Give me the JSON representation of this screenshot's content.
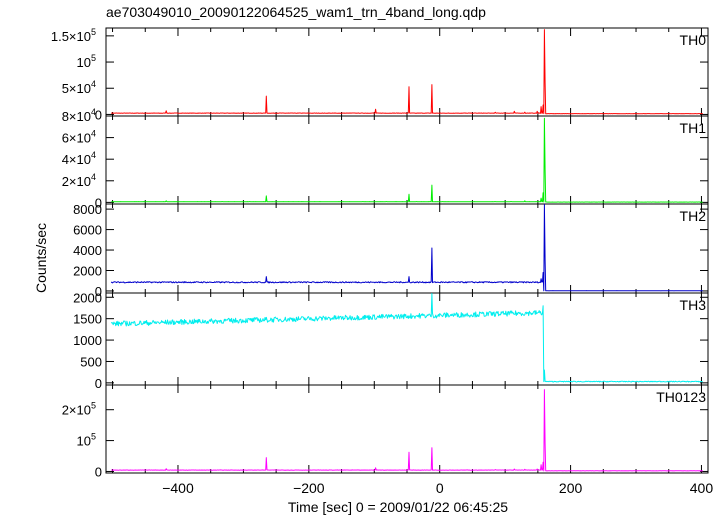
{
  "chart_data": {
    "type": "line",
    "title": "ae703049010_20090122064525_wam1_trn_4band_long.qdp",
    "xlabel": "Time [sec] 0 = 2009/01/22 06:45:25",
    "ylabel": "Counts/sec",
    "xlim": [
      -510,
      410
    ],
    "x_ticks": [
      -400,
      -200,
      0,
      200,
      400
    ],
    "x_tick_labels": [
      "−400",
      "−200",
      "0",
      "200",
      "400"
    ],
    "panels": [
      {
        "name": "TH0",
        "color": "#ff0000",
        "ylim": [
          -3000,
          165000
        ],
        "y_ticks": [
          {
            "value": 0,
            "mant": "0",
            "exp": ""
          },
          {
            "value": 50000,
            "mant": "5×10",
            "exp": "4"
          },
          {
            "value": 100000,
            "mant": "10",
            "exp": "5"
          },
          {
            "value": 150000,
            "mant": "1.5×10",
            "exp": "5"
          }
        ],
        "baseline": 2500,
        "noise": 300,
        "pre_end": 158,
        "post_level": 1500,
        "post_noise": 150,
        "spikes": [
          [
            -418,
            7000
          ],
          [
            -265,
            35000
          ],
          [
            -98,
            10000
          ],
          [
            -47,
            53000
          ],
          [
            -12,
            57000
          ],
          [
            85,
            4000
          ],
          [
            114,
            6000
          ],
          [
            130,
            4500
          ],
          [
            149,
            6000
          ],
          [
            155,
            15000
          ],
          [
            158,
            18000
          ],
          [
            160,
            162000
          ],
          [
            161,
            60000
          ]
        ]
      },
      {
        "name": "TH1",
        "color": "#00ee00",
        "ylim": [
          -1500,
          80000
        ],
        "y_ticks": [
          {
            "value": 0,
            "mant": "0",
            "exp": ""
          },
          {
            "value": 20000,
            "mant": "2×10",
            "exp": "4"
          },
          {
            "value": 40000,
            "mant": "4×10",
            "exp": "4"
          },
          {
            "value": 60000,
            "mant": "6×10",
            "exp": "4"
          },
          {
            "value": 80000,
            "mant": "8×10",
            "exp": "4"
          }
        ],
        "baseline": 600,
        "noise": 100,
        "pre_end": 158,
        "post_level": 300,
        "post_noise": 60,
        "spikes": [
          [
            -418,
            1500
          ],
          [
            -265,
            6000
          ],
          [
            -47,
            7500
          ],
          [
            -12,
            16000
          ],
          [
            130,
            1500
          ],
          [
            155,
            4000
          ],
          [
            158,
            9000
          ],
          [
            160,
            78000
          ],
          [
            161,
            30000
          ]
        ]
      },
      {
        "name": "TH2",
        "color": "#0000cc",
        "ylim": [
          -200,
          8500
        ],
        "y_ticks": [
          {
            "value": 0,
            "mant": "0",
            "exp": ""
          },
          {
            "value": 2000,
            "mant": "2000",
            "exp": ""
          },
          {
            "value": 4000,
            "mant": "4000",
            "exp": ""
          },
          {
            "value": 6000,
            "mant": "6000",
            "exp": ""
          },
          {
            "value": 8000,
            "mant": "8000",
            "exp": ""
          }
        ],
        "baseline": 850,
        "noise": 60,
        "pre_end": 158,
        "post_level": 20,
        "post_noise": 10,
        "spikes": [
          [
            -265,
            1400
          ],
          [
            -47,
            1400
          ],
          [
            -12,
            4200
          ],
          [
            155,
            1200
          ],
          [
            158,
            1800
          ],
          [
            160,
            8500
          ],
          [
            161,
            3000
          ]
        ]
      },
      {
        "name": "TH3",
        "color": "#00eeee",
        "ylim": [
          -50,
          2100
        ],
        "y_ticks": [
          {
            "value": 0,
            "mant": "0",
            "exp": ""
          },
          {
            "value": 500,
            "mant": "500",
            "exp": ""
          },
          {
            "value": 1000,
            "mant": "1000",
            "exp": ""
          },
          {
            "value": 1500,
            "mant": "1500",
            "exp": ""
          },
          {
            "value": 2000,
            "mant": "2000",
            "exp": ""
          }
        ],
        "baseline_start": 1380,
        "baseline_end": 1640,
        "noise": 60,
        "pre_end": 158,
        "post_level": 30,
        "post_noise": 10,
        "spikes": [
          [
            -12,
            2100
          ],
          [
            158,
            1800
          ],
          [
            160,
            300
          ]
        ]
      },
      {
        "name": "TH0123",
        "color": "#ff00ff",
        "ylim": [
          -5000,
          280000
        ],
        "y_ticks": [
          {
            "value": 0,
            "mant": "0",
            "exp": ""
          },
          {
            "value": 100000,
            "mant": "10",
            "exp": "5"
          },
          {
            "value": 200000,
            "mant": "2×10",
            "exp": "5"
          }
        ],
        "baseline": 4500,
        "noise": 400,
        "pre_end": 158,
        "post_level": 2000,
        "post_noise": 200,
        "spikes": [
          [
            -418,
            9000
          ],
          [
            -265,
            45000
          ],
          [
            -98,
            12000
          ],
          [
            -47,
            62000
          ],
          [
            -12,
            77000
          ],
          [
            85,
            6000
          ],
          [
            114,
            8000
          ],
          [
            130,
            7000
          ],
          [
            149,
            8000
          ],
          [
            155,
            22000
          ],
          [
            158,
            30000
          ],
          [
            160,
            265000
          ],
          [
            161,
            90000
          ]
        ]
      }
    ]
  }
}
